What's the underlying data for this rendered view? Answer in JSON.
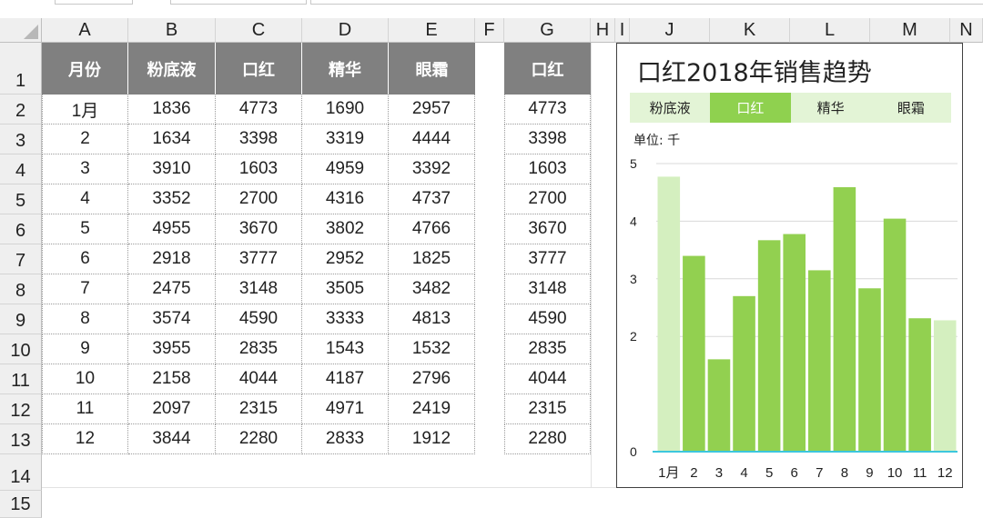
{
  "columns": [
    "A",
    "B",
    "C",
    "D",
    "E",
    "F",
    "G",
    "H",
    "I",
    "J",
    "K",
    "L",
    "M",
    "N"
  ],
  "rows": [
    "1",
    "2",
    "3",
    "4",
    "5",
    "6",
    "7",
    "8",
    "9",
    "10",
    "11",
    "12",
    "13",
    "14",
    "15"
  ],
  "table": {
    "headers": [
      "月份",
      "粉底液",
      "口红",
      "精华",
      "眼霜"
    ],
    "rows": [
      [
        "1月",
        "1836",
        "4773",
        "1690",
        "2957"
      ],
      [
        "2",
        "1634",
        "3398",
        "3319",
        "4444"
      ],
      [
        "3",
        "3910",
        "1603",
        "4959",
        "3392"
      ],
      [
        "4",
        "3352",
        "2700",
        "4316",
        "4737"
      ],
      [
        "5",
        "4955",
        "3670",
        "3802",
        "4766"
      ],
      [
        "6",
        "2918",
        "3777",
        "2952",
        "1825"
      ],
      [
        "7",
        "2475",
        "3148",
        "3505",
        "3482"
      ],
      [
        "8",
        "3574",
        "4590",
        "3333",
        "4813"
      ],
      [
        "9",
        "3955",
        "2835",
        "1543",
        "1532"
      ],
      [
        "10",
        "2158",
        "4044",
        "4187",
        "2796"
      ],
      [
        "11",
        "2097",
        "2315",
        "4971",
        "2419"
      ],
      [
        "12",
        "3844",
        "2280",
        "2833",
        "1912"
      ]
    ]
  },
  "helper_column": {
    "header": "口红",
    "values": [
      "4773",
      "3398",
      "1603",
      "2700",
      "3670",
      "3777",
      "3148",
      "4590",
      "2835",
      "4044",
      "2315",
      "2280"
    ]
  },
  "chart": {
    "title": "口红2018年销售趋势",
    "tabs": [
      "粉底液",
      "口红",
      "精华",
      "眼霜"
    ],
    "active_tab": 1,
    "unit_label": "单位: 千",
    "colors": {
      "bar": "#92d050",
      "bar_light": "#d4efbf",
      "tab_active": "#8fd14f",
      "tab_bg": "#e3f4d6",
      "baseline": "#3cc7dd",
      "grid": "#d9d9d9"
    }
  },
  "chart_data": {
    "type": "bar",
    "categories": [
      "1月",
      "2",
      "3",
      "4",
      "5",
      "6",
      "7",
      "8",
      "9",
      "10",
      "11",
      "12"
    ],
    "values": [
      4.773,
      3.398,
      1.603,
      2.7,
      3.67,
      3.777,
      3.148,
      4.59,
      2.835,
      4.044,
      2.315,
      2.28
    ],
    "y_ticks": [
      "0",
      "2",
      "3",
      "4",
      "5"
    ],
    "ylim": [
      0,
      5
    ],
    "light_bars": [
      0,
      11
    ]
  }
}
